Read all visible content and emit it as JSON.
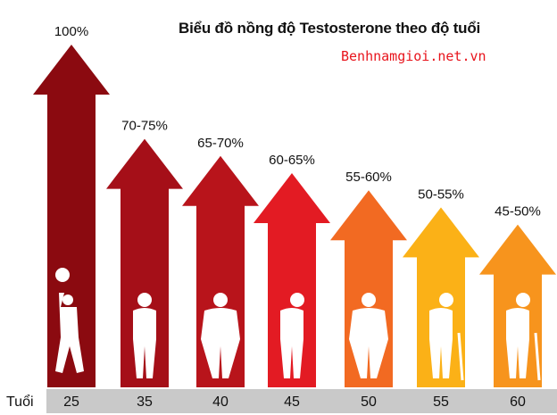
{
  "title": "Biểu đồ nồng độ Testosterone theo độ tuổi",
  "watermark": "Benhnamgioi.net.vn",
  "axis_label": "Tuổi",
  "chart_data": {
    "type": "bar",
    "title": "Biểu đồ nồng độ Testosterone theo độ tuổi",
    "xlabel": "Tuổi",
    "ylabel": "",
    "categories": [
      "25",
      "35",
      "40",
      "45",
      "50",
      "55",
      "60"
    ],
    "data_labels": [
      "100%",
      "70-75%",
      "65-70%",
      "60-65%",
      "55-60%",
      "50-55%",
      "45-50%"
    ],
    "values": [
      100,
      72.5,
      67.5,
      62.5,
      57.5,
      52.5,
      47.5
    ],
    "ranges": [
      [
        100,
        100
      ],
      [
        70,
        75
      ],
      [
        65,
        70
      ],
      [
        60,
        65
      ],
      [
        55,
        60
      ],
      [
        50,
        55
      ],
      [
        45,
        50
      ]
    ],
    "ylim": [
      0,
      100
    ],
    "grid": false,
    "legend": "none",
    "colors": [
      "#8b0a10",
      "#a50f18",
      "#b8141b",
      "#e31b23",
      "#f26a22",
      "#fbb117",
      "#f7941d"
    ],
    "icons": [
      "child-ball-icon",
      "man-standing-icon",
      "man-belly-icon",
      "man-walking-icon",
      "man-heavy-icon",
      "elderly-cane-icon",
      "elderly-cane-icon"
    ]
  }
}
